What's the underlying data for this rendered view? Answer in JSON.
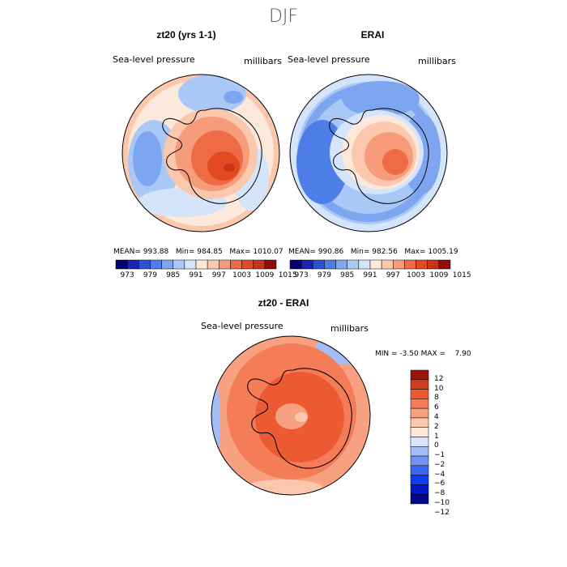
{
  "figure": {
    "title": "DJF"
  },
  "colors": {
    "ramp": [
      "#07006f",
      "#1a22b0",
      "#2d52d8",
      "#4d7ee8",
      "#7ea6f0",
      "#a9c8f6",
      "#d4e4fb",
      "#fde8dc",
      "#fbc7ad",
      "#f79c7b",
      "#ef6b45",
      "#e24a23",
      "#c7341a",
      "#8e0c0a"
    ],
    "diff_scale": [
      "#000a8c",
      "#0018c8",
      "#0b3ef0",
      "#3a66f2",
      "#6f92f4",
      "#a3bdf7",
      "#dbe6fc",
      "#fde6d7",
      "#fbc8ae",
      "#f8a181",
      "#f47c56",
      "#ec5a33",
      "#cf3b1c",
      "#9a1508"
    ],
    "coast": "#000000"
  },
  "panel1": {
    "title": "zt20 (yrs 1-1)",
    "field": "Sea-level pressure",
    "units": "millibars",
    "mean_label": "MEAN=",
    "mean": "993.88",
    "min_label": "Min=",
    "min": "984.85",
    "max_label": "Max=",
    "max": "1010.07"
  },
  "panel2": {
    "title": "ERAI",
    "field": "Sea-level pressure",
    "units": "millibars",
    "mean_label": "MEAN=",
    "mean": "990.86",
    "min_label": "Min=",
    "min": "982.56",
    "max_label": "Max=",
    "max": "1005.19"
  },
  "shared_ticks": [
    "973",
    "979",
    "985",
    "991",
    "997",
    "1003",
    "1009",
    "1015"
  ],
  "panel3": {
    "title": "zt20 - ERAI",
    "field": "Sea-level pressure",
    "units": "millibars",
    "min_label": "MIN =",
    "min": "-3.50",
    "max_label": "MAX =",
    "max": "7.90",
    "ticks": [
      "12",
      "10",
      "8",
      "6",
      "4",
      "2",
      "1",
      "0",
      "−1",
      "−2",
      "−4",
      "−6",
      "−8",
      "−10",
      "−12"
    ]
  }
}
